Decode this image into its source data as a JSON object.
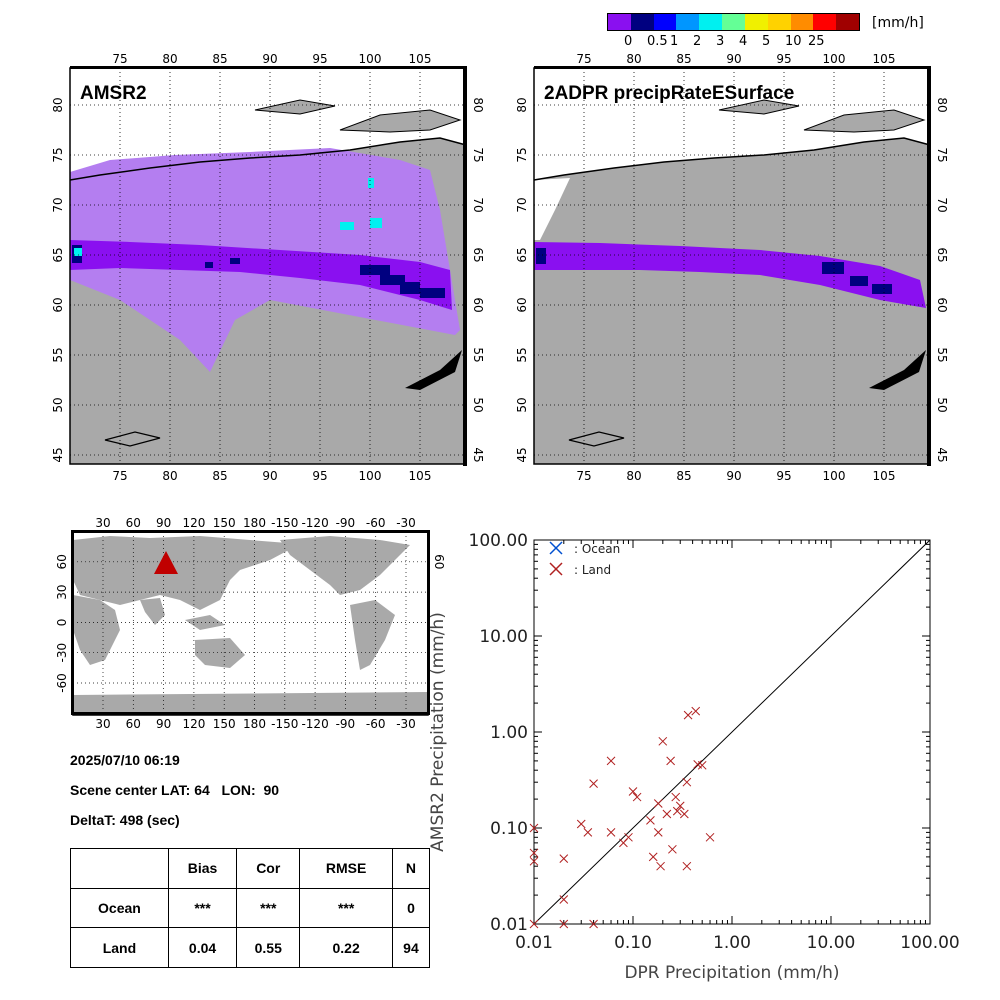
{
  "colorbar": {
    "colors": [
      "#8a10f0",
      "#000080",
      "#0000ff",
      "#0096ff",
      "#00f0f0",
      "#64ff96",
      "#f0f000",
      "#ffd200",
      "#ff8c00",
      "#ff0000",
      "#a00000"
    ],
    "tick_labels": [
      "0",
      "0.5",
      "1",
      "2",
      "3",
      "4",
      "5",
      "10",
      "25"
    ],
    "unit": "[mm/h]"
  },
  "maps": {
    "left_title": "AMSR2",
    "right_title": "2ADPR precipRateESurface",
    "lon_labels": [
      "75",
      "80",
      "85",
      "90",
      "95",
      "100",
      "105"
    ],
    "lat_labels": [
      "45",
      "50",
      "55",
      "60",
      "65",
      "70",
      "75",
      "80"
    ],
    "land_color": "#a9a9a9",
    "swath_light_color": "#b47ef0",
    "rain_color": "#8a10f0",
    "heavy_color": "#000080",
    "water_color": "#ffffff"
  },
  "world_map": {
    "top_lon_labels": [
      "30",
      "60",
      "90",
      "120",
      "150",
      "180",
      "-150",
      "-120",
      "-90",
      "-60",
      "-30"
    ],
    "lat_labels": [
      "-60",
      "-30",
      "0",
      "30",
      "60"
    ],
    "marker_color": "#c00000",
    "marker_label": ""
  },
  "scene": {
    "datetime": "2025/07/10 06:19",
    "center": "Scene center LAT: 64   LON:  90",
    "delta": "DeltaT:  498 (sec)"
  },
  "stats_table": {
    "headers": [
      "",
      "Bias",
      "Cor",
      "RMSE",
      "N"
    ],
    "rows": [
      [
        "Ocean",
        "***",
        "***",
        "***",
        "0"
      ],
      [
        "Land",
        "0.04",
        "0.55",
        "0.22",
        "94"
      ]
    ]
  },
  "chart_data": {
    "type": "scatter",
    "xlabel": "DPR Precipitation (mm/h)",
    "ylabel": "AMSR2 Precipitation (mm/h)",
    "xscale": "log",
    "yscale": "log",
    "xlim": [
      0.01,
      100
    ],
    "ylim": [
      0.01,
      100
    ],
    "x_tick_labels": [
      "0.01",
      "0.10",
      "1.00",
      "10.00",
      "100.00"
    ],
    "y_tick_labels": [
      "0.01",
      "0.10",
      "1.00",
      "10.00",
      "100.00"
    ],
    "legend": [
      {
        "name": ": Ocean",
        "color": "#0050d0"
      },
      {
        "name": ": Land",
        "color": "#b02020"
      }
    ],
    "legend_placement": "top-left",
    "reference_line": "1:1",
    "series": [
      {
        "name": ": Ocean",
        "color": "#0050d0",
        "points": []
      },
      {
        "name": ": Land",
        "color": "#b02020",
        "points": [
          [
            0.01,
            0.01
          ],
          [
            0.01,
            0.045
          ],
          [
            0.01,
            0.055
          ],
          [
            0.01,
            0.1
          ],
          [
            0.02,
            0.01
          ],
          [
            0.02,
            0.018
          ],
          [
            0.02,
            0.048
          ],
          [
            0.03,
            0.11
          ],
          [
            0.035,
            0.09
          ],
          [
            0.04,
            0.01
          ],
          [
            0.04,
            0.29
          ],
          [
            0.06,
            0.09
          ],
          [
            0.06,
            0.5
          ],
          [
            0.08,
            0.07
          ],
          [
            0.09,
            0.08
          ],
          [
            0.1,
            0.24
          ],
          [
            0.11,
            0.21
          ],
          [
            0.15,
            0.12
          ],
          [
            0.16,
            0.05
          ],
          [
            0.18,
            0.18
          ],
          [
            0.18,
            0.09
          ],
          [
            0.19,
            0.04
          ],
          [
            0.2,
            0.8
          ],
          [
            0.22,
            0.14
          ],
          [
            0.24,
            0.5
          ],
          [
            0.25,
            0.06
          ],
          [
            0.27,
            0.21
          ],
          [
            0.28,
            0.15
          ],
          [
            0.3,
            0.17
          ],
          [
            0.33,
            0.14
          ],
          [
            0.35,
            0.04
          ],
          [
            0.35,
            0.3
          ],
          [
            0.36,
            1.5
          ],
          [
            0.43,
            1.65
          ],
          [
            0.45,
            0.46
          ],
          [
            0.5,
            0.45
          ],
          [
            0.6,
            0.08
          ]
        ]
      }
    ]
  }
}
